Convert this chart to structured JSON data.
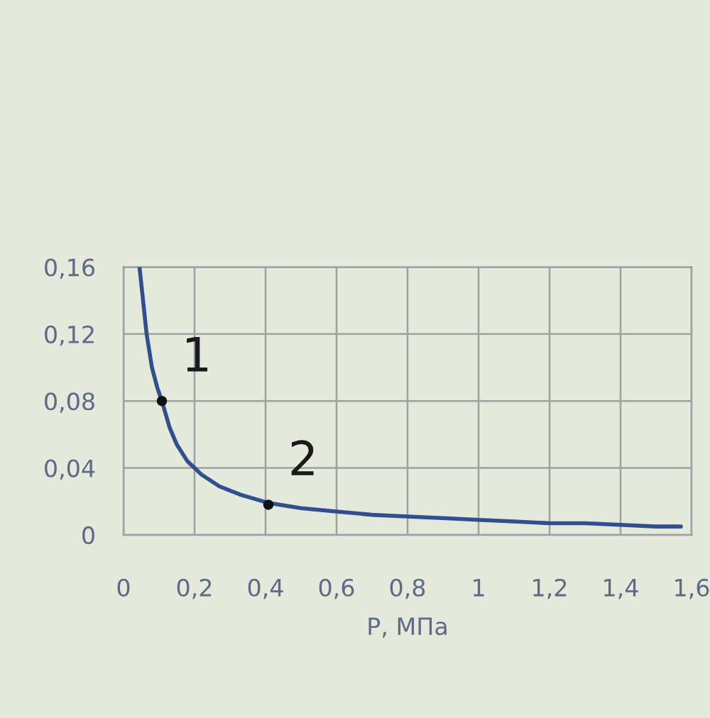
{
  "chart_data": {
    "type": "line",
    "xlabel": "P, МПа",
    "series": [
      {
        "color": "#2f4f8f",
        "x": [
          0.045,
          0.055,
          0.065,
          0.08,
          0.095,
          0.108,
          0.13,
          0.15,
          0.18,
          0.22,
          0.27,
          0.33,
          0.41,
          0.5,
          0.6,
          0.7,
          0.8,
          0.9,
          1.0,
          1.1,
          1.2,
          1.3,
          1.4,
          1.5,
          1.57
        ],
        "values": [
          0.16,
          0.14,
          0.12,
          0.1,
          0.088,
          0.08,
          0.064,
          0.054,
          0.044,
          0.036,
          0.029,
          0.024,
          0.019,
          0.016,
          0.014,
          0.012,
          0.011,
          0.01,
          0.009,
          0.008,
          0.007,
          0.007,
          0.006,
          0.005,
          0.005
        ]
      },
      {
        "type": "scatter",
        "color": "#111111",
        "marker": "circle",
        "x": [
          0.108,
          0.408
        ],
        "values": [
          0.08,
          0.018
        ]
      }
    ],
    "annotations": [
      {
        "text": "1",
        "x": 0.108,
        "y": 0.08
      },
      {
        "text": "2",
        "x": 0.408,
        "y": 0.018
      }
    ],
    "xlim": [
      0,
      1.6
    ],
    "xticks": [
      0,
      {
        "value": 0.2,
        "label": "0,2"
      },
      {
        "value": 0.4,
        "label": "0,4"
      },
      {
        "value": 0.6,
        "label": "0,6"
      },
      {
        "value": 0.8,
        "label": "0,8"
      },
      1,
      {
        "value": 1.2,
        "label": "1,2"
      },
      {
        "value": 1.4,
        "label": "1,4"
      },
      {
        "value": 1.6,
        "label": "1,6"
      }
    ],
    "ylim": [
      0,
      0.16
    ],
    "yticks": [
      0,
      {
        "value": 0.04,
        "label": "0,04"
      },
      {
        "value": 0.08,
        "label": "0,08"
      },
      {
        "value": 0.12,
        "label": "0,12"
      },
      {
        "value": 0.16,
        "label": "0,16"
      }
    ],
    "grid": true
  }
}
